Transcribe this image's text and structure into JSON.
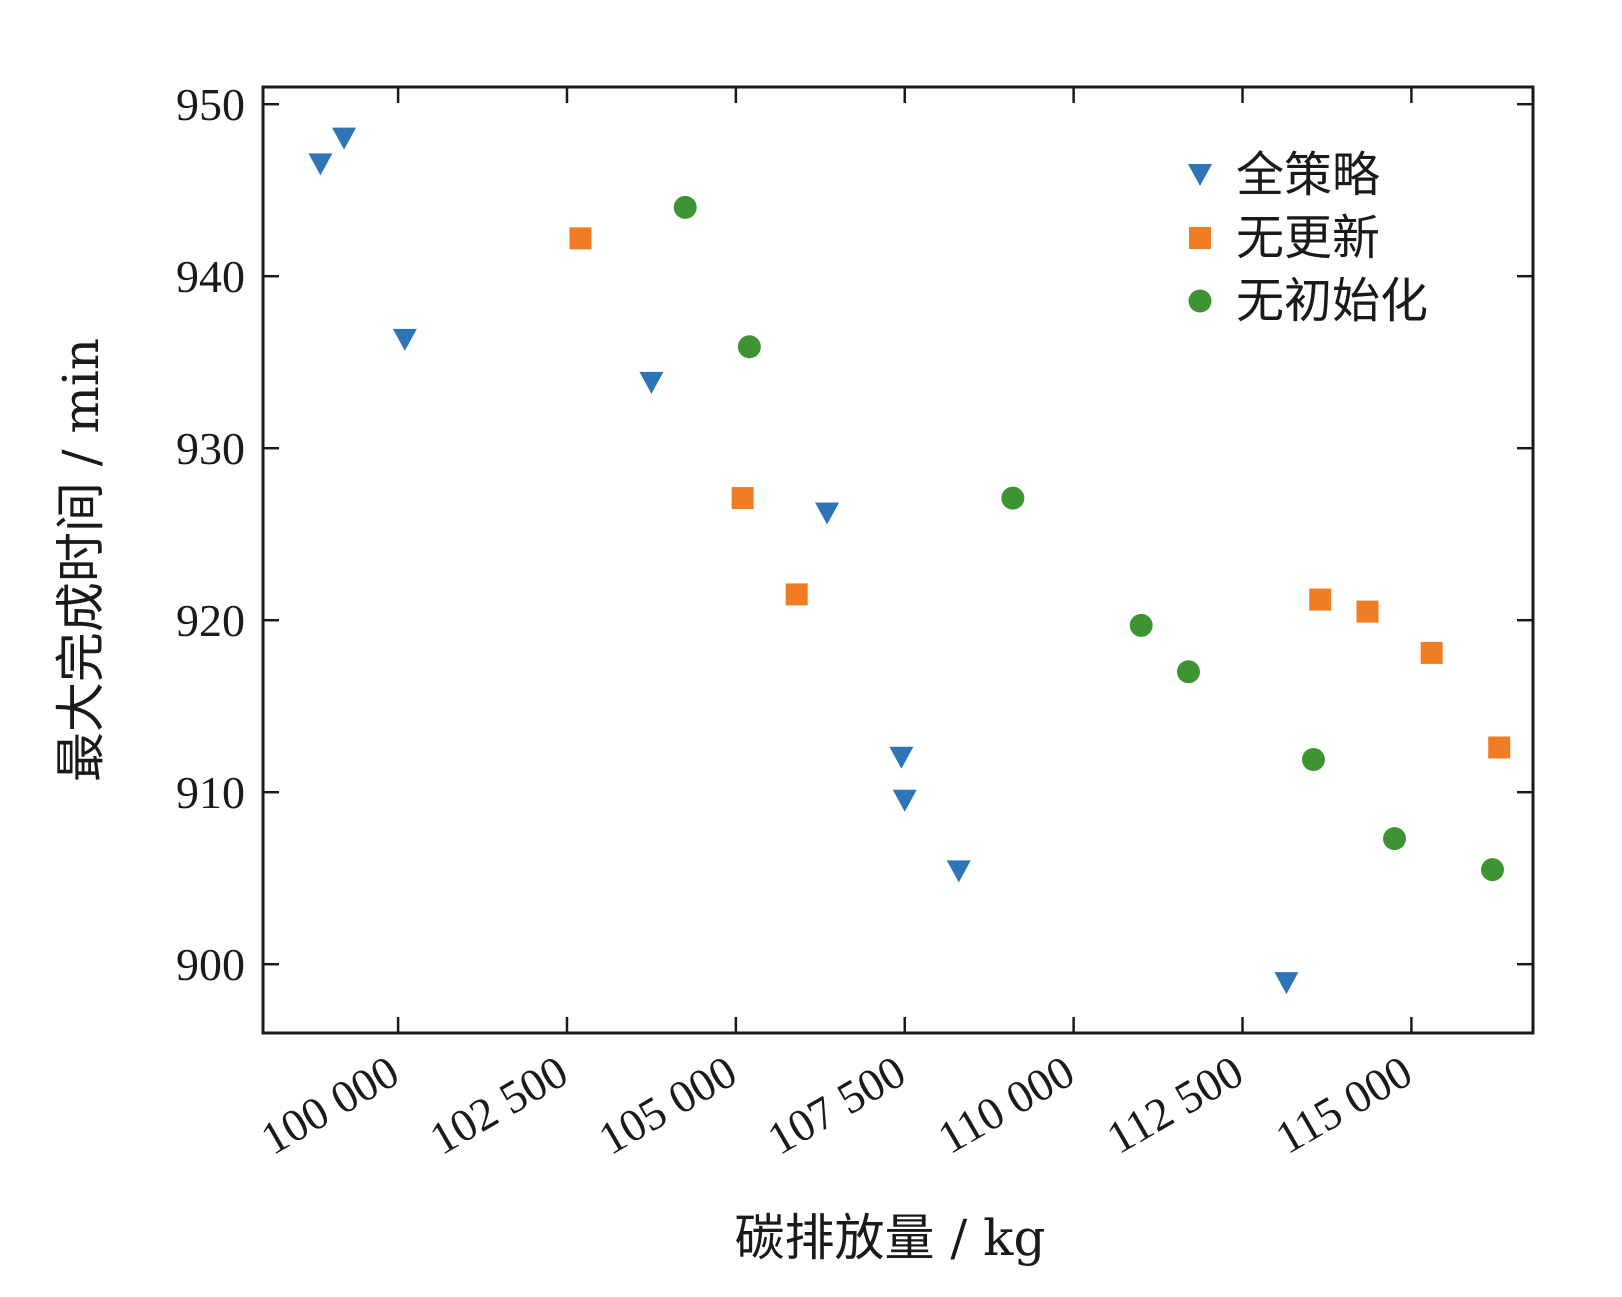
{
  "chart_data": {
    "type": "scatter",
    "title": "",
    "xlabel": "碳排放量 / kg",
    "ylabel": "最大完成时间 / min",
    "xlim": [
      98000,
      116800
    ],
    "ylim": [
      896,
      951
    ],
    "xticks": [
      100000,
      102500,
      105000,
      107500,
      110000,
      112500,
      115000
    ],
    "xtick_labels": [
      "100 000",
      "102 500",
      "105 000",
      "107 500",
      "110 000",
      "112 500",
      "115 000"
    ],
    "yticks": [
      900,
      910,
      920,
      930,
      940,
      950
    ],
    "ytick_labels": [
      "900",
      "910",
      "920",
      "930",
      "940",
      "950"
    ],
    "grid": false,
    "legend_position": "top-right",
    "series": [
      {
        "name": "全策略",
        "marker": "triangle-down",
        "color": "#2e75b6",
        "points": [
          [
            98850,
            946.5
          ],
          [
            99200,
            948.0
          ],
          [
            100100,
            936.3
          ],
          [
            103750,
            933.8
          ],
          [
            106350,
            926.2
          ],
          [
            107450,
            912.0
          ],
          [
            107500,
            909.5
          ],
          [
            108300,
            905.4
          ],
          [
            113150,
            898.9
          ]
        ]
      },
      {
        "name": "无更新",
        "marker": "square",
        "color": "#f07d23",
        "points": [
          [
            102700,
            942.2
          ],
          [
            105100,
            927.1
          ],
          [
            105900,
            921.5
          ],
          [
            113650,
            921.2
          ],
          [
            114350,
            920.5
          ],
          [
            115300,
            918.1
          ],
          [
            116300,
            912.6
          ]
        ]
      },
      {
        "name": "无初始化",
        "marker": "circle",
        "color": "#3e9433",
        "points": [
          [
            104250,
            944.0
          ],
          [
            105200,
            935.9
          ],
          [
            109100,
            927.1
          ],
          [
            111000,
            919.7
          ],
          [
            111700,
            917.0
          ],
          [
            113550,
            911.9
          ],
          [
            114750,
            907.3
          ],
          [
            116200,
            905.5
          ]
        ]
      }
    ]
  }
}
